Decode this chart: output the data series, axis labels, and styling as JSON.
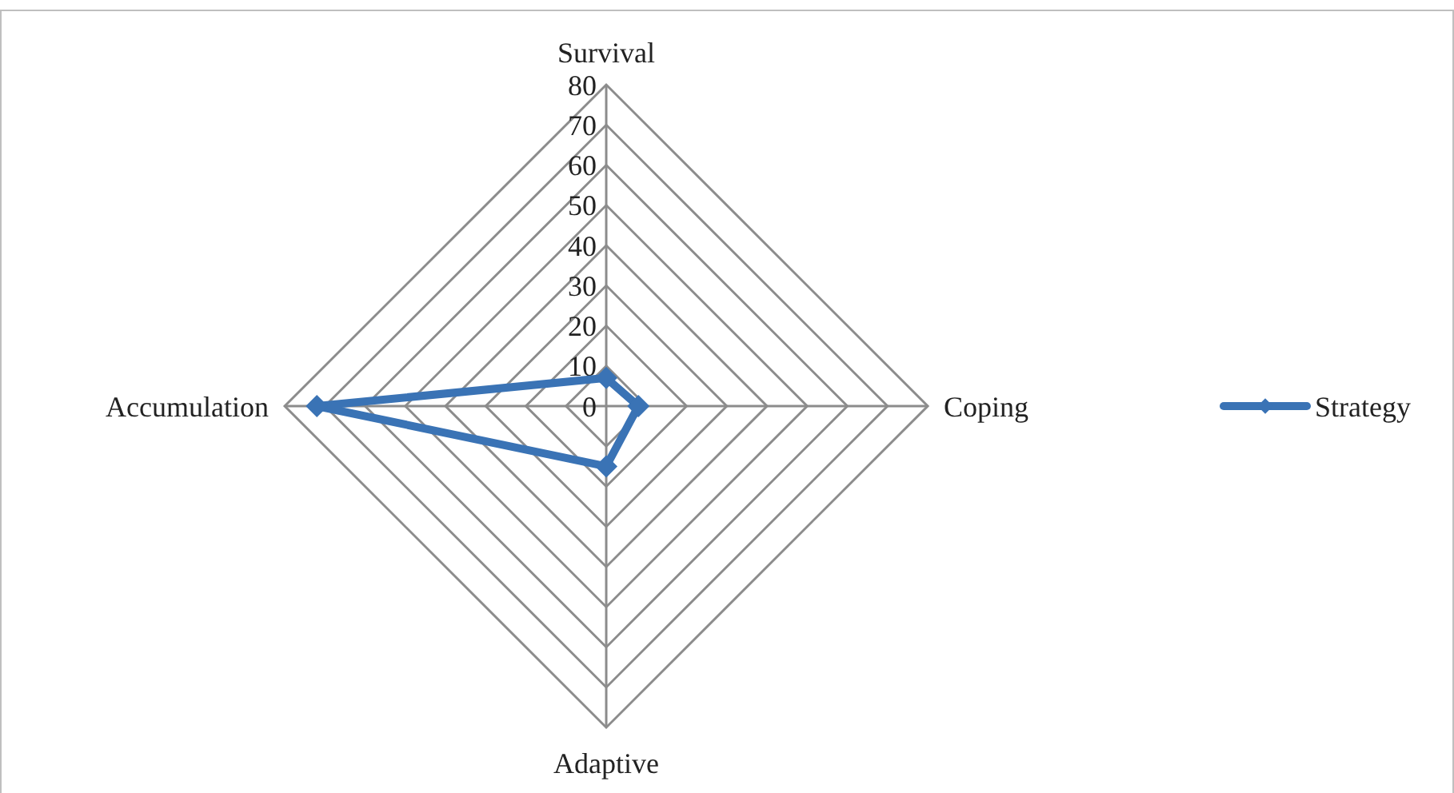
{
  "chart_data": {
    "type": "radar",
    "categories": [
      "Survival",
      "Coping",
      "Adaptive",
      "Accumulation"
    ],
    "series": [
      {
        "name": "Strategy",
        "color": "#3a73b5",
        "values": [
          7,
          8,
          15,
          72
        ]
      }
    ],
    "ylim": [
      0,
      80
    ],
    "yticks": [
      0,
      10,
      20,
      30,
      40,
      50,
      60,
      70,
      80
    ],
    "legend": "right",
    "marker": "diamond",
    "grid": true
  }
}
